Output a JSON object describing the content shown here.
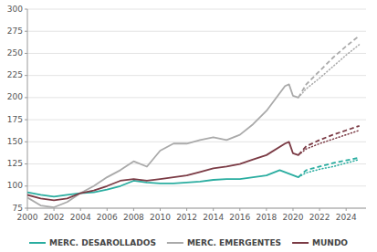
{
  "chart_data": {
    "type": "line",
    "xlim": [
      2000,
      2025.5
    ],
    "ylim": [
      75,
      300
    ],
    "xticks": [
      2000,
      2002,
      2004,
      2006,
      2008,
      2010,
      2012,
      2014,
      2016,
      2018,
      2020,
      2022,
      2024
    ],
    "yticks": [
      75,
      100,
      125,
      150,
      175,
      200,
      225,
      250,
      275,
      300
    ],
    "grid": true,
    "legend": "bottom",
    "series": [
      {
        "name": "MERC. DESAROLLADOS",
        "color": "#2aada0",
        "line_style": "solid",
        "x": [
          2000,
          2001,
          2002,
          2003,
          2004,
          2005,
          2006,
          2007,
          2008,
          2009,
          2010,
          2011,
          2012,
          2013,
          2014,
          2015,
          2016,
          2017,
          2018,
          2019,
          2020.4
        ],
        "values": [
          93,
          90,
          88,
          90,
          92,
          93,
          96,
          100,
          106,
          104,
          103,
          103,
          104,
          105,
          107,
          108,
          108,
          110,
          112,
          118,
          110
        ]
      },
      {
        "color": "#2aada0",
        "line_style": "dashed",
        "x": [
          2020.4,
          2021,
          2022,
          2023,
          2024,
          2025
        ],
        "values": [
          110,
          118,
          122,
          126,
          129,
          132
        ]
      },
      {
        "color": "#2aada0",
        "line_style": "dotted",
        "x": [
          2020.4,
          2021,
          2022,
          2023,
          2024,
          2025
        ],
        "values": [
          110,
          115,
          119,
          122,
          126,
          130
        ]
      },
      {
        "name": "MERC. EMERGENTES",
        "color": "#aaaaaa",
        "line_style": "solid",
        "x": [
          2000,
          2001,
          2002,
          2003,
          2004,
          2005,
          2006,
          2007,
          2008,
          2009,
          2010,
          2011,
          2012,
          2013,
          2014,
          2015,
          2016,
          2017,
          2018,
          2019.4,
          2019.7,
          2020.0,
          2020.4
        ],
        "values": [
          87,
          78,
          76,
          82,
          92,
          100,
          110,
          118,
          128,
          122,
          140,
          148,
          148,
          152,
          155,
          152,
          158,
          170,
          185,
          213,
          215,
          202,
          200
        ]
      },
      {
        "color": "#aaaaaa",
        "line_style": "dashed",
        "x": [
          2020.4,
          2021,
          2022,
          2023,
          2024,
          2025
        ],
        "values": [
          200,
          215,
          230,
          245,
          258,
          270
        ]
      },
      {
        "color": "#aaaaaa",
        "line_style": "dotted",
        "x": [
          2020.4,
          2021,
          2022,
          2023,
          2024,
          2025
        ],
        "values": [
          200,
          210,
          222,
          235,
          248,
          260
        ]
      },
      {
        "name": "MUNDO",
        "color": "#7b3b45",
        "line_style": "solid",
        "x": [
          2000,
          2001,
          2002,
          2003,
          2004,
          2005,
          2006,
          2007,
          2008,
          2009,
          2010,
          2011,
          2012,
          2013,
          2014,
          2015,
          2016,
          2017,
          2018,
          2019.4,
          2019.7,
          2020.0,
          2020.4
        ],
        "values": [
          90,
          86,
          84,
          86,
          92,
          95,
          100,
          106,
          108,
          106,
          108,
          110,
          112,
          116,
          120,
          122,
          125,
          130,
          135,
          148,
          150,
          137,
          135
        ]
      },
      {
        "color": "#7b3b45",
        "line_style": "dashed",
        "x": [
          2020.4,
          2021,
          2022,
          2023,
          2024,
          2025
        ],
        "values": [
          135,
          145,
          152,
          158,
          163,
          168
        ]
      },
      {
        "color": "#7b3b45",
        "line_style": "dotted",
        "x": [
          2020.4,
          2021,
          2022,
          2023,
          2024,
          2025
        ],
        "values": [
          135,
          142,
          148,
          153,
          158,
          163
        ]
      }
    ]
  }
}
